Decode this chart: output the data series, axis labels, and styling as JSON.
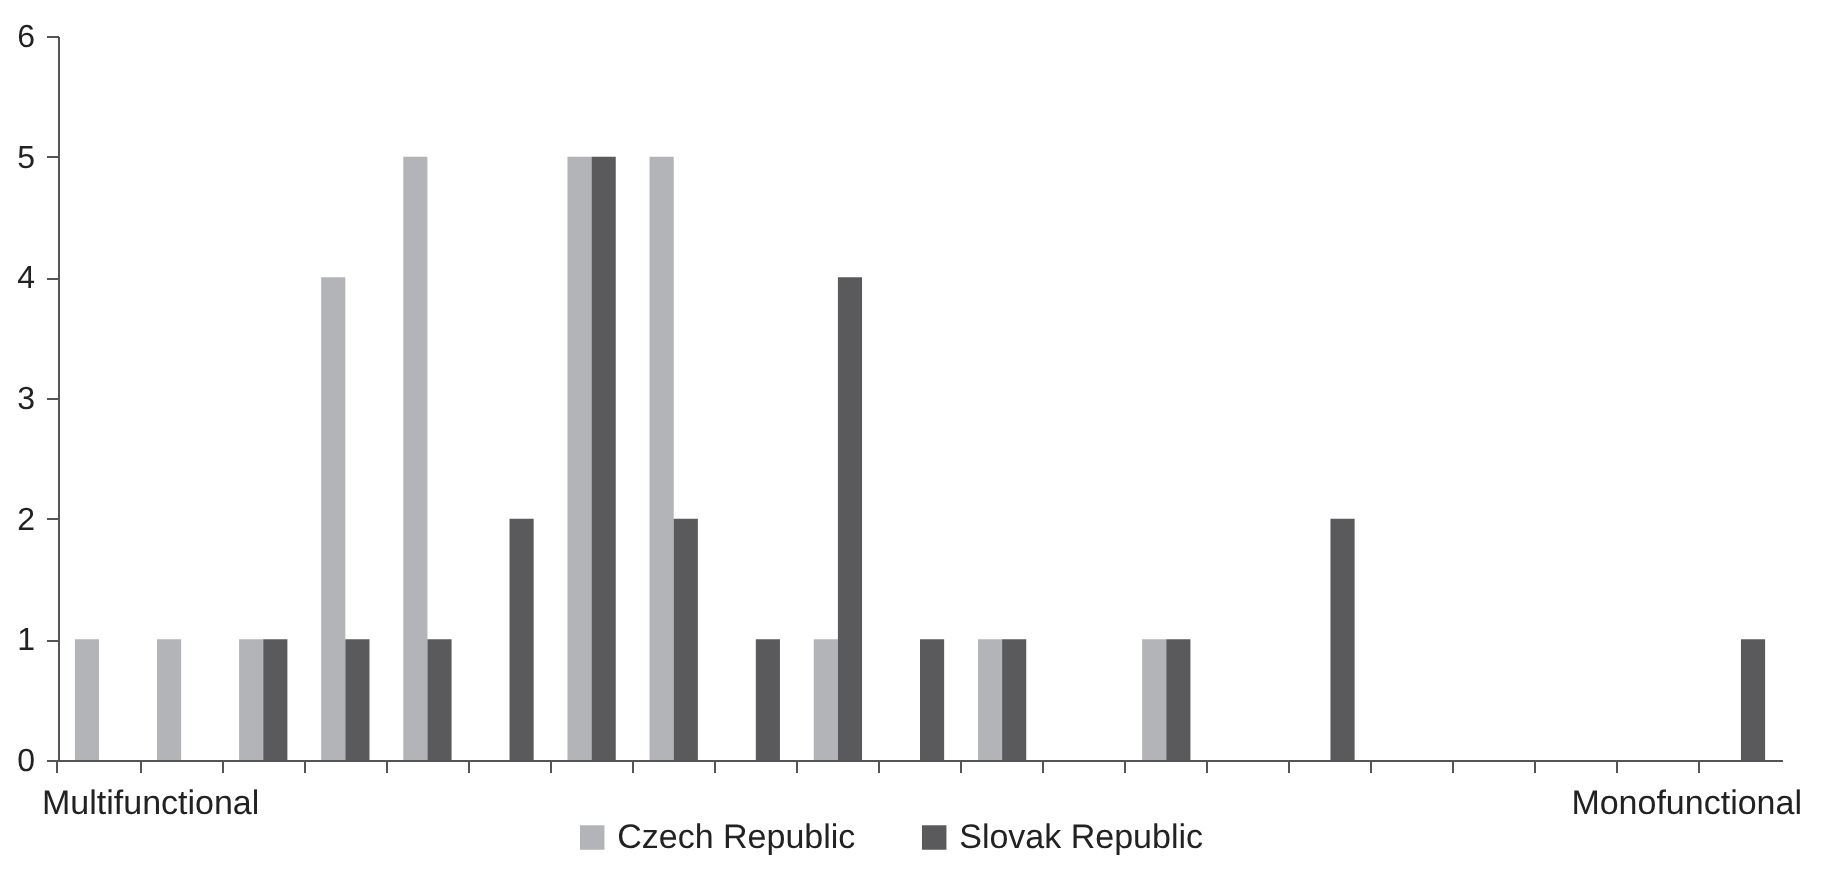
{
  "chart_data": {
    "type": "bar",
    "categories": [
      null,
      null,
      null,
      null,
      null,
      null,
      null,
      null,
      null,
      null,
      null,
      null,
      null,
      null,
      null,
      null,
      null,
      null,
      null,
      null,
      null
    ],
    "series": [
      {
        "name": "Czech Republic",
        "color": "#b3b4b8",
        "values": [
          1,
          1,
          1,
          4,
          5,
          0,
          5,
          5,
          0,
          1,
          0,
          1,
          0,
          1,
          0,
          0,
          0,
          0,
          0,
          0,
          0
        ]
      },
      {
        "name": "Slovak Republic",
        "color": "#5a5a5c",
        "values": [
          0,
          0,
          1,
          1,
          1,
          2,
          5,
          2,
          1,
          4,
          1,
          1,
          0,
          1,
          0,
          2,
          0,
          0,
          0,
          0,
          1
        ]
      }
    ],
    "ylim": [
      0,
      6
    ],
    "yticks": [
      0,
      1,
      2,
      3,
      4,
      5,
      6
    ],
    "grid": false,
    "legend": "bottom",
    "annotations": [
      "Multifunctional",
      "Monofunctional"
    ]
  }
}
